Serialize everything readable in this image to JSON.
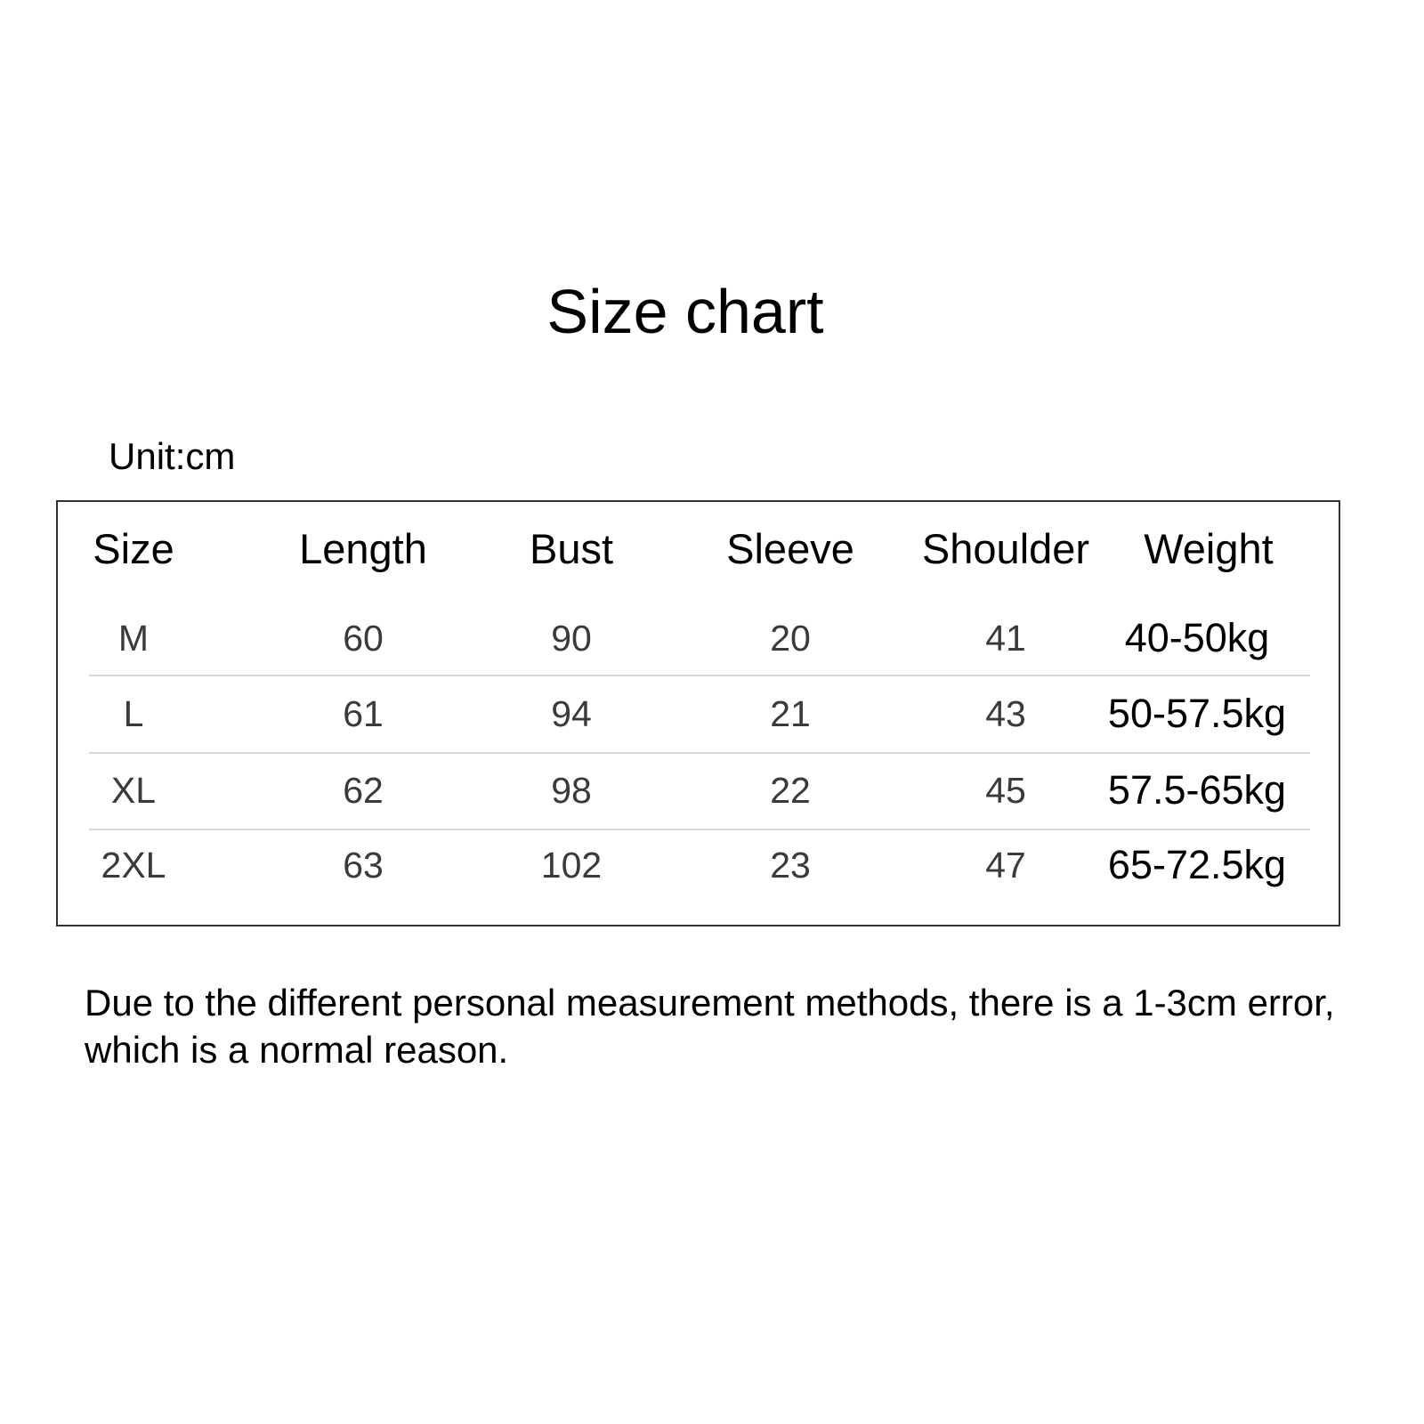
{
  "title": "Size chart",
  "unit_label": "Unit:cm",
  "table": {
    "headers": [
      "Size",
      "Length",
      "Bust",
      "Sleeve",
      "Shoulder",
      "Weight"
    ],
    "rows": [
      [
        "M",
        "60",
        "90",
        "20",
        "41",
        "40-50kg"
      ],
      [
        "L",
        "61",
        "94",
        "21",
        "43",
        "50-57.5kg"
      ],
      [
        "XL",
        "62",
        "98",
        "22",
        "45",
        "57.5-65kg"
      ],
      [
        "2XL",
        "63",
        "102",
        "23",
        "47",
        "65-72.5kg"
      ]
    ]
  },
  "note": "Due to the different personal measurement methods, there is a 1-3cm error, which is a normal reason."
}
